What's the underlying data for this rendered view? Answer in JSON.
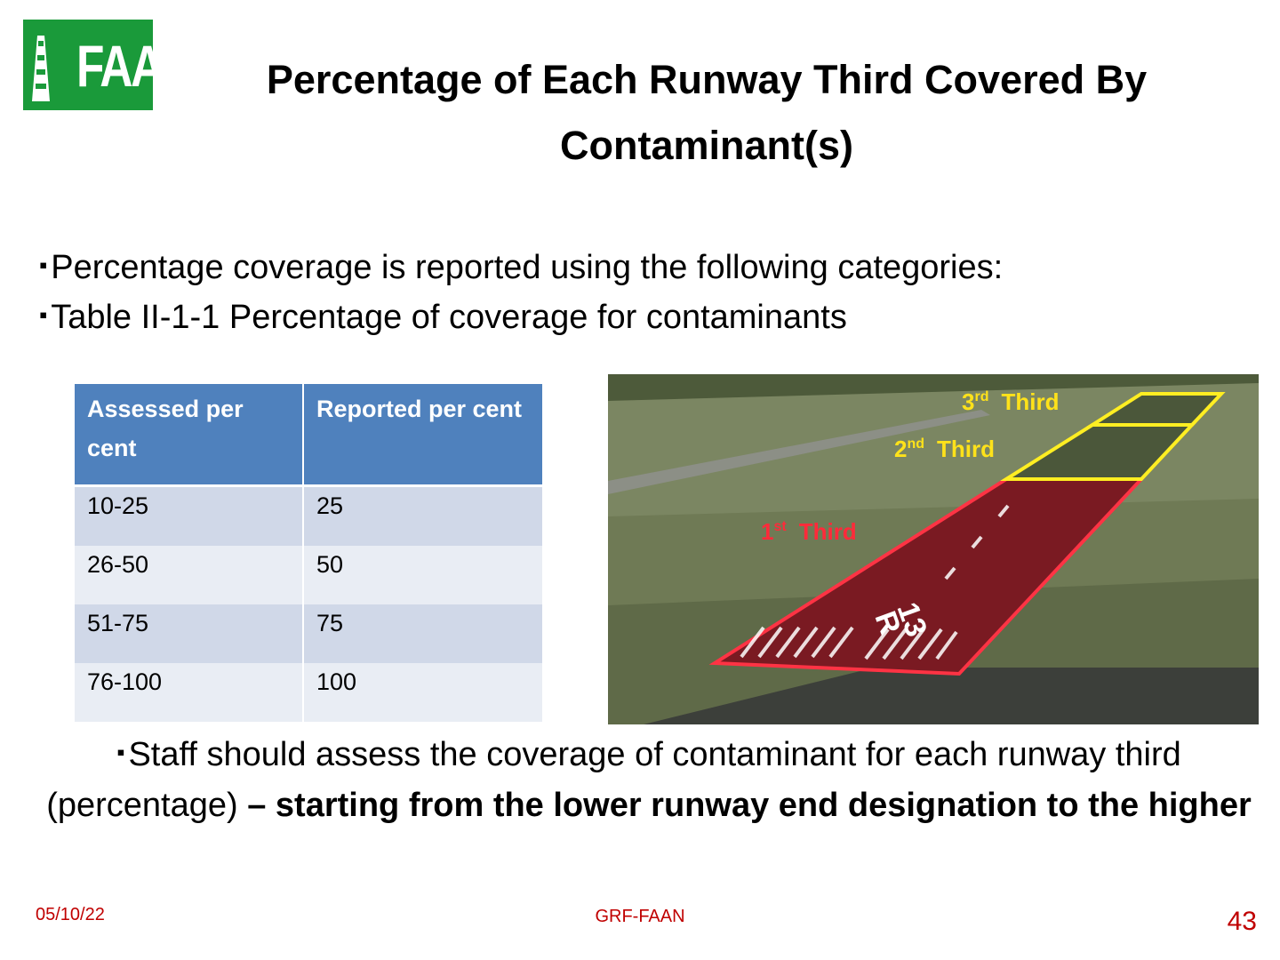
{
  "logo": {
    "text": "FAAN"
  },
  "header": {
    "title_line1": "Percentage of Each Runway Third Covered By",
    "title_line2": "Contaminant(s)"
  },
  "bullets": [
    "Percentage coverage is reported using the following categories:",
    "Table II-1-1 Percentage of coverage for contaminants"
  ],
  "table": {
    "header": [
      "Assessed per cent",
      "Reported per cent"
    ],
    "rows": [
      [
        "10-25",
        "25"
      ],
      [
        "26-50",
        "50"
      ],
      [
        "51-75",
        "75"
      ],
      [
        "76-100",
        "100"
      ]
    ]
  },
  "image": {
    "labels": [
      {
        "ordinal": "3",
        "suffix": "rd",
        "word": "Third"
      },
      {
        "ordinal": "2",
        "suffix": "nd",
        "word": "Third"
      },
      {
        "ordinal": "1",
        "suffix": "st",
        "word": "Third"
      }
    ],
    "designator_number": "13",
    "designator_letter": "R"
  },
  "note": {
    "normal": "Staff should assess the coverage of contaminant for each runway third (percentage) ",
    "bold": "– starting from the lower runway end designation to the higher"
  },
  "footer": {
    "date": "05/10/22",
    "center": "GRF-FAAN",
    "page": "43"
  }
}
